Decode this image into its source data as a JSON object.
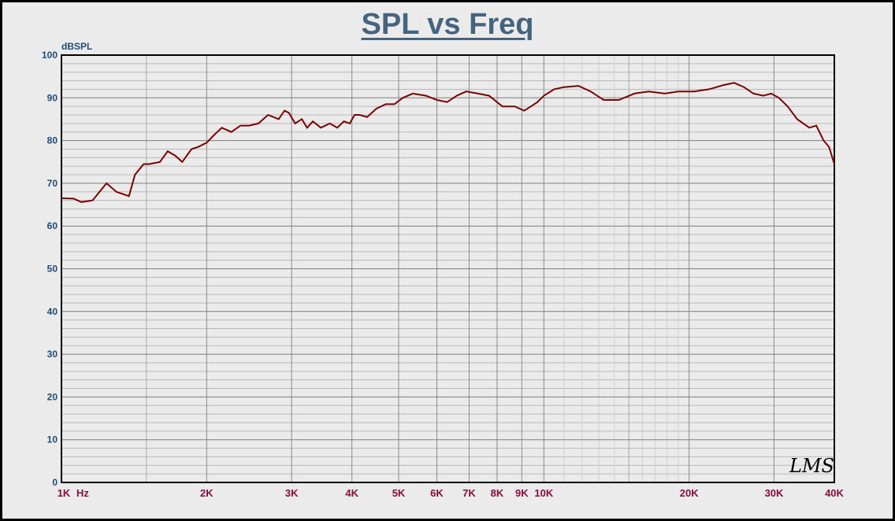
{
  "chart_data": {
    "type": "line",
    "title": "SPL vs Freq",
    "ylabel": "dBSPL",
    "xlabel_unit": "Hz",
    "x_scale": "log",
    "xlim": [
      1000,
      40000
    ],
    "ylim": [
      0,
      100
    ],
    "y_ticks": [
      0,
      10,
      20,
      30,
      40,
      50,
      60,
      70,
      80,
      90,
      100
    ],
    "x_ticks": [
      {
        "value": 1000,
        "label": "1K"
      },
      {
        "value": 2000,
        "label": "2K"
      },
      {
        "value": 3000,
        "label": "3K"
      },
      {
        "value": 4000,
        "label": "4K"
      },
      {
        "value": 5000,
        "label": "5K"
      },
      {
        "value": 6000,
        "label": "6K"
      },
      {
        "value": 7000,
        "label": "7K"
      },
      {
        "value": 8000,
        "label": "8K"
      },
      {
        "value": 9000,
        "label": "9K"
      },
      {
        "value": 10000,
        "label": "10K"
      },
      {
        "value": 20000,
        "label": "20K"
      },
      {
        "value": 30000,
        "label": "30K"
      },
      {
        "value": 40000,
        "label": "40K"
      }
    ],
    "grid": true,
    "watermark": "LMS",
    "series": [
      {
        "color": "#7a0000",
        "x": [
          1000,
          1060,
          1100,
          1160,
          1240,
          1300,
          1380,
          1420,
          1480,
          1520,
          1600,
          1660,
          1720,
          1780,
          1860,
          1920,
          2000,
          2080,
          2150,
          2250,
          2350,
          2450,
          2560,
          2680,
          2820,
          2900,
          2960,
          3050,
          3150,
          3230,
          3320,
          3450,
          3600,
          3730,
          3850,
          3960,
          4050,
          4150,
          4300,
          4500,
          4700,
          4900,
          5100,
          5350,
          5700,
          6000,
          6300,
          6600,
          6900,
          7300,
          7700,
          8200,
          8700,
          9100,
          9400,
          9700,
          10000,
          10500,
          11000,
          11800,
          12500,
          13300,
          14300,
          15400,
          16500,
          17800,
          19000,
          20500,
          22000,
          23600,
          24800,
          26000,
          27200,
          28500,
          29600,
          30700,
          32000,
          33500,
          34500,
          35500,
          36700,
          38000,
          39000,
          40000
        ],
        "y": [
          66.5,
          66.4,
          65.6,
          66.0,
          70.0,
          68.0,
          67.0,
          72.0,
          74.5,
          74.5,
          75.0,
          77.5,
          76.5,
          75.0,
          78.0,
          78.5,
          79.5,
          81.5,
          83.0,
          82.0,
          83.5,
          83.5,
          84.0,
          86.0,
          85.0,
          87.0,
          86.5,
          84.0,
          85.0,
          83.0,
          84.5,
          83.0,
          84.0,
          83.0,
          84.5,
          84.0,
          86.0,
          86.0,
          85.5,
          87.5,
          88.5,
          88.5,
          90.0,
          91.0,
          90.5,
          89.5,
          89.0,
          90.5,
          91.5,
          91.0,
          90.5,
          88.0,
          88.0,
          87.0,
          88.0,
          89.0,
          90.5,
          92.0,
          92.5,
          92.8,
          91.5,
          89.5,
          89.5,
          91.0,
          91.5,
          91.0,
          91.5,
          91.5,
          92.0,
          93.0,
          93.5,
          92.5,
          91.0,
          90.5,
          91.0,
          90.0,
          88.0,
          85.0,
          84.0,
          83.0,
          83.5,
          80.0,
          78.5,
          74.5
        ]
      }
    ]
  }
}
